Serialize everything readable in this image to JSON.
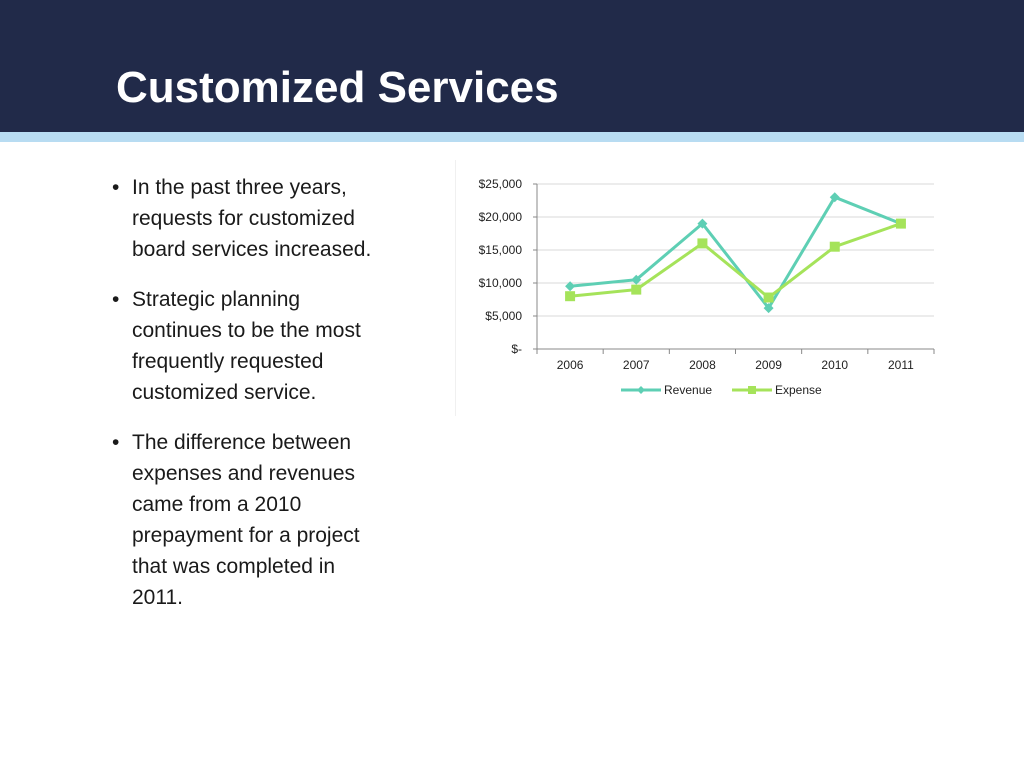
{
  "slide": {
    "title": "Customized Services",
    "bullets": [
      "In the past three years, requests for customized board services increased.",
      "Strategic planning continues to be the most frequently requested customized service.",
      "The difference between expenses and revenues came from a 2010 prepayment for a project that was completed in 2011."
    ],
    "bullet_glyph": "•"
  },
  "colors": {
    "title_bar": "#212a49",
    "title_accent": "#b8dcf2",
    "revenue": "#5ecfb4",
    "expense": "#a5e35a"
  },
  "chart_data": {
    "type": "line",
    "categories": [
      "2006",
      "2007",
      "2008",
      "2009",
      "2010",
      "2011"
    ],
    "series": [
      {
        "name": "Revenue",
        "values": [
          9500,
          10500,
          19000,
          6200,
          23000,
          19000
        ],
        "color": "#5ecfb4",
        "marker": "diamond"
      },
      {
        "name": "Expense",
        "values": [
          8000,
          9000,
          16000,
          7800,
          15500,
          19000
        ],
        "color": "#a5e35a",
        "marker": "square"
      }
    ],
    "ylim": [
      0,
      25000
    ],
    "yticks": [
      0,
      5000,
      10000,
      15000,
      20000,
      25000
    ],
    "ytick_labels": [
      "$-",
      "$5,000",
      "$10,000",
      "$15,000",
      "$20,000",
      "$25,000"
    ],
    "title": "",
    "xlabel": "",
    "ylabel": "",
    "grid": true,
    "legend": "bottom"
  }
}
